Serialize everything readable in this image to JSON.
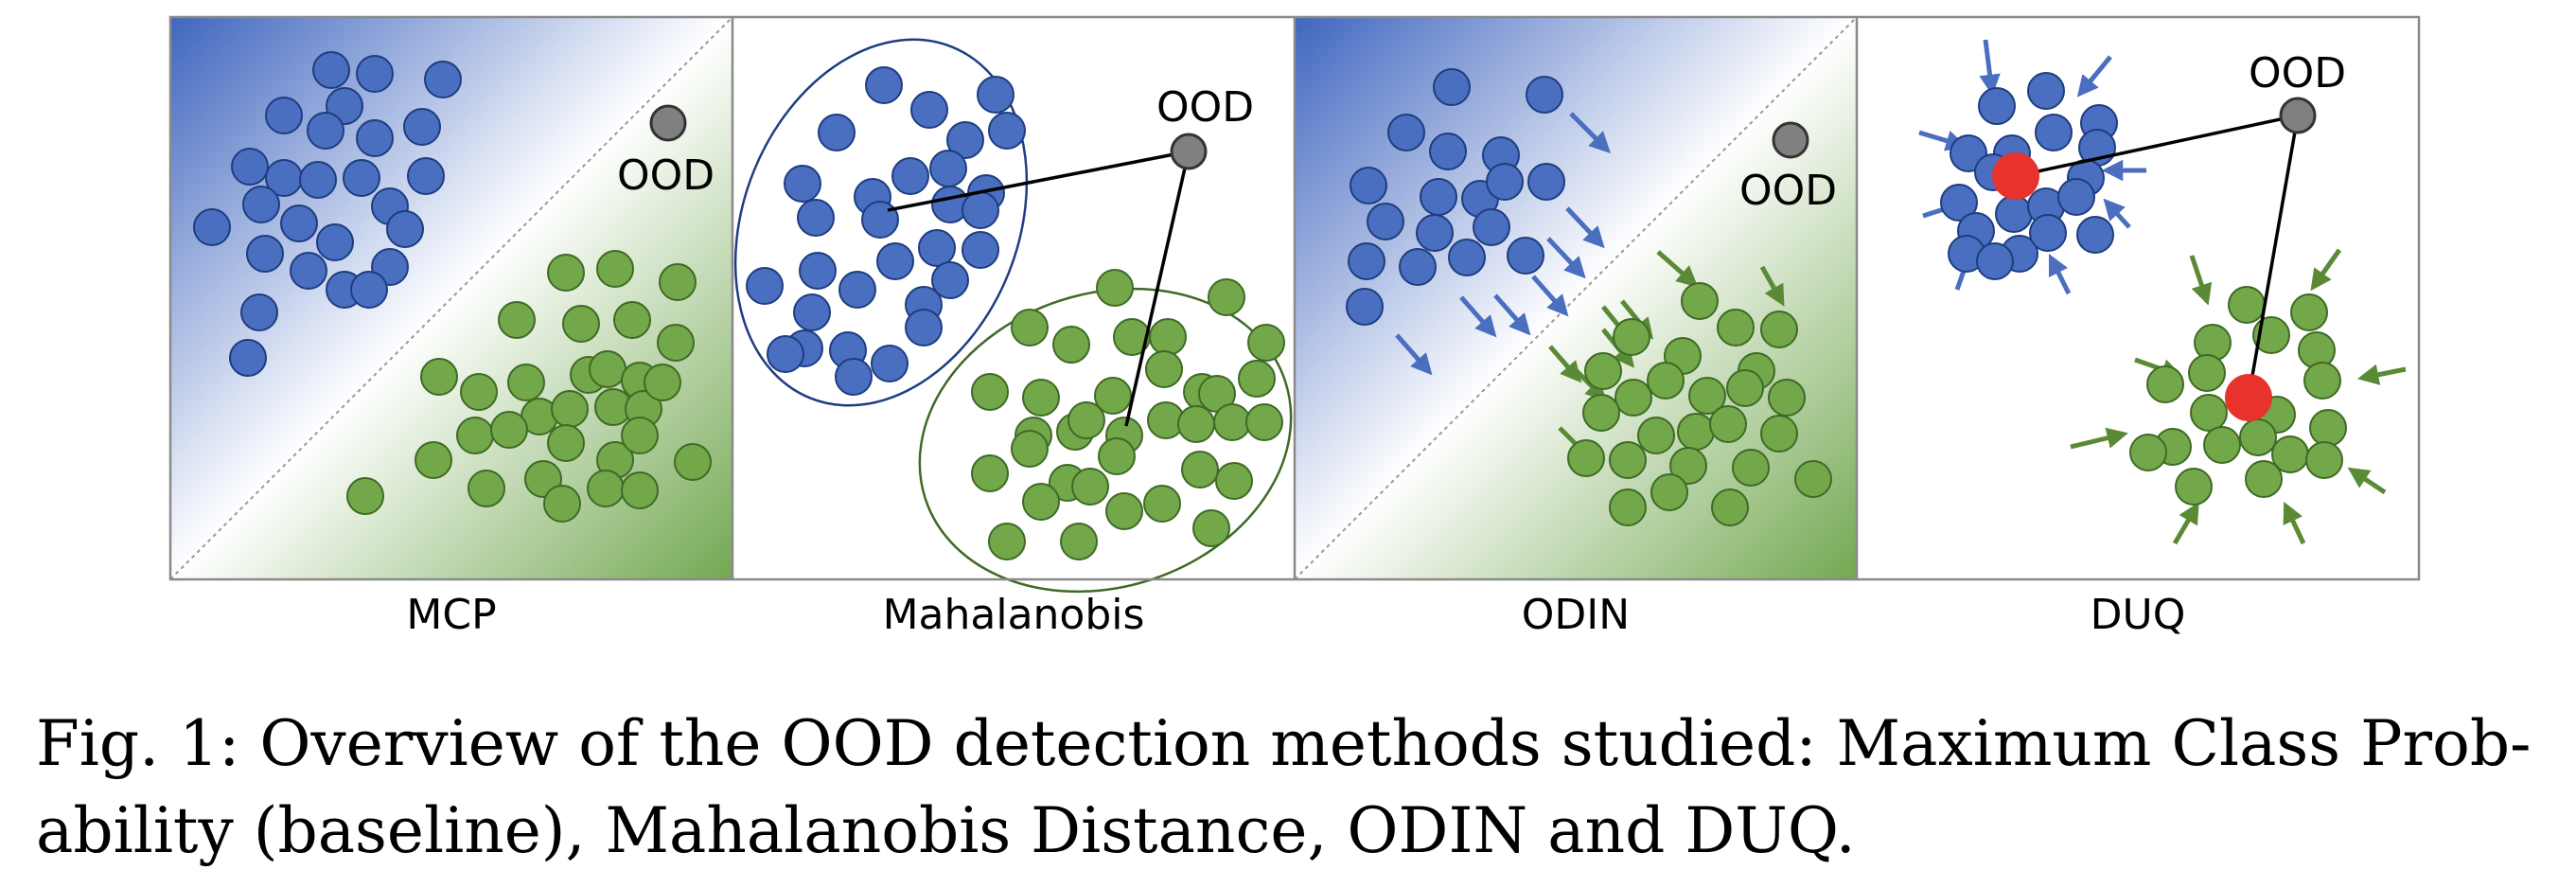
{
  "panels": [
    {
      "label": "MCP",
      "ood_label": "OOD"
    },
    {
      "label": "Mahalanobis",
      "ood_label": "OOD"
    },
    {
      "label": "ODIN",
      "ood_label": "OOD"
    },
    {
      "label": "DUQ",
      "ood_label": "OOD"
    }
  ],
  "caption": {
    "line1": "Fig. 1: Overview of the OOD detection methods studied: Maximum Class Prob-",
    "line2": "ability (baseline), Mahalanobis Distance, ODIN and DUQ."
  },
  "colors": {
    "blue_point": "#4a6fc0",
    "blue_stroke": "#1e3d80",
    "green_point": "#72a84a",
    "green_stroke": "#3f6a25",
    "ood_point": "#808080",
    "centroid": "#e8322c",
    "frame": "#8a8a8a"
  }
}
